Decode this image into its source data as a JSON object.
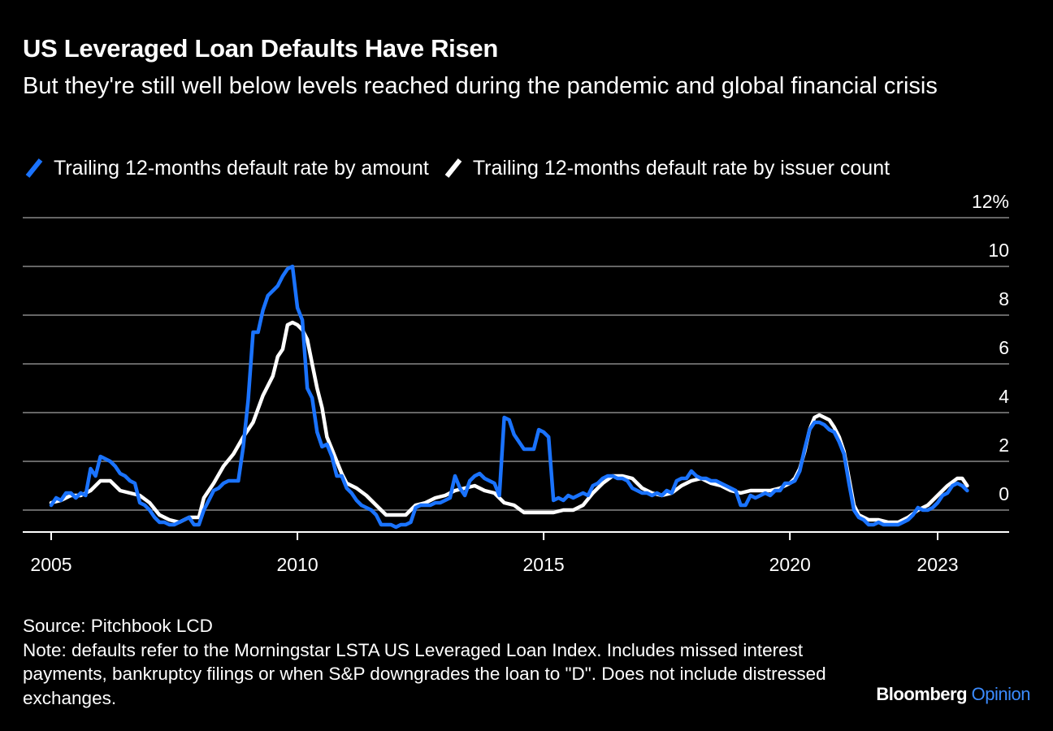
{
  "chart_data": {
    "type": "line",
    "title": "US Leveraged Loan Defaults Have Risen",
    "subtitle": "But they're still well below levels reached during the pandemic and global financial crisis",
    "xlabel": "",
    "ylabel": "",
    "xlim": [
      2005,
      2023.75
    ],
    "ylim": [
      -0.8,
      12
    ],
    "y_ticks": [
      0,
      2,
      4,
      6,
      8,
      10,
      12
    ],
    "y_tick_labels": [
      "0",
      "2",
      "4",
      "6",
      "8",
      "10",
      "12%"
    ],
    "x_ticks": [
      2005,
      2010,
      2015,
      2020,
      2023
    ],
    "x_tick_labels": [
      "2005",
      "2010",
      "2015",
      "2020",
      "2023"
    ],
    "grid": true,
    "legend_position": "top-left",
    "series": [
      {
        "name": "Trailing 12-months default rate by amount",
        "color": "#1a73ff",
        "points": [
          [
            2005.0,
            0.2
          ],
          [
            2005.1,
            0.5
          ],
          [
            2005.2,
            0.4
          ],
          [
            2005.3,
            0.7
          ],
          [
            2005.4,
            0.7
          ],
          [
            2005.5,
            0.5
          ],
          [
            2005.6,
            0.7
          ],
          [
            2005.7,
            0.6
          ],
          [
            2005.8,
            1.7
          ],
          [
            2005.9,
            1.4
          ],
          [
            2006.0,
            2.2
          ],
          [
            2006.1,
            2.1
          ],
          [
            2006.2,
            2.0
          ],
          [
            2006.3,
            1.8
          ],
          [
            2006.4,
            1.5
          ],
          [
            2006.5,
            1.4
          ],
          [
            2006.6,
            1.2
          ],
          [
            2006.7,
            1.1
          ],
          [
            2006.8,
            0.3
          ],
          [
            2006.9,
            0.2
          ],
          [
            2007.0,
            0.0
          ],
          [
            2007.1,
            -0.3
          ],
          [
            2007.2,
            -0.5
          ],
          [
            2007.3,
            -0.5
          ],
          [
            2007.4,
            -0.6
          ],
          [
            2007.5,
            -0.6
          ],
          [
            2007.6,
            -0.5
          ],
          [
            2007.7,
            -0.4
          ],
          [
            2007.8,
            -0.3
          ],
          [
            2007.9,
            -0.6
          ],
          [
            2008.0,
            -0.6
          ],
          [
            2008.1,
            0.0
          ],
          [
            2008.2,
            0.4
          ],
          [
            2008.3,
            0.8
          ],
          [
            2008.4,
            0.9
          ],
          [
            2008.5,
            1.1
          ],
          [
            2008.6,
            1.2
          ],
          [
            2008.7,
            1.2
          ],
          [
            2008.8,
            1.2
          ],
          [
            2008.9,
            2.6
          ],
          [
            2009.0,
            4.5
          ],
          [
            2009.1,
            7.3
          ],
          [
            2009.2,
            7.3
          ],
          [
            2009.3,
            8.2
          ],
          [
            2009.4,
            8.8
          ],
          [
            2009.5,
            9.0
          ],
          [
            2009.6,
            9.2
          ],
          [
            2009.7,
            9.6
          ],
          [
            2009.8,
            9.9
          ],
          [
            2009.9,
            10.0
          ],
          [
            2010.0,
            8.3
          ],
          [
            2010.1,
            7.8
          ],
          [
            2010.2,
            5.0
          ],
          [
            2010.3,
            4.6
          ],
          [
            2010.4,
            3.2
          ],
          [
            2010.5,
            2.6
          ],
          [
            2010.6,
            2.7
          ],
          [
            2010.7,
            2.2
          ],
          [
            2010.8,
            1.4
          ],
          [
            2010.9,
            1.4
          ],
          [
            2011.0,
            0.9
          ],
          [
            2011.1,
            0.7
          ],
          [
            2011.2,
            0.4
          ],
          [
            2011.3,
            0.2
          ],
          [
            2011.4,
            0.1
          ],
          [
            2011.5,
            0.0
          ],
          [
            2011.6,
            -0.2
          ],
          [
            2011.7,
            -0.6
          ],
          [
            2011.8,
            -0.6
          ],
          [
            2011.9,
            -0.6
          ],
          [
            2012.0,
            -0.7
          ],
          [
            2012.1,
            -0.6
          ],
          [
            2012.2,
            -0.6
          ],
          [
            2012.3,
            -0.5
          ],
          [
            2012.4,
            0.1
          ],
          [
            2012.5,
            0.2
          ],
          [
            2012.6,
            0.2
          ],
          [
            2012.7,
            0.2
          ],
          [
            2012.8,
            0.3
          ],
          [
            2012.9,
            0.3
          ],
          [
            2013.0,
            0.4
          ],
          [
            2013.1,
            0.5
          ],
          [
            2013.2,
            1.4
          ],
          [
            2013.3,
            0.9
          ],
          [
            2013.4,
            0.6
          ],
          [
            2013.5,
            1.2
          ],
          [
            2013.6,
            1.4
          ],
          [
            2013.7,
            1.5
          ],
          [
            2013.8,
            1.3
          ],
          [
            2013.9,
            1.2
          ],
          [
            2014.0,
            1.1
          ],
          [
            2014.1,
            0.6
          ],
          [
            2014.2,
            3.8
          ],
          [
            2014.3,
            3.7
          ],
          [
            2014.4,
            3.1
          ],
          [
            2014.5,
            2.8
          ],
          [
            2014.6,
            2.5
          ],
          [
            2014.7,
            2.5
          ],
          [
            2014.8,
            2.5
          ],
          [
            2014.9,
            3.3
          ],
          [
            2015.0,
            3.2
          ],
          [
            2015.1,
            3.0
          ],
          [
            2015.2,
            0.4
          ],
          [
            2015.3,
            0.5
          ],
          [
            2015.4,
            0.4
          ],
          [
            2015.5,
            0.6
          ],
          [
            2015.6,
            0.5
          ],
          [
            2015.7,
            0.6
          ],
          [
            2015.8,
            0.7
          ],
          [
            2015.9,
            0.6
          ],
          [
            2016.0,
            1.0
          ],
          [
            2016.1,
            1.1
          ],
          [
            2016.2,
            1.3
          ],
          [
            2016.3,
            1.4
          ],
          [
            2016.4,
            1.4
          ],
          [
            2016.5,
            1.3
          ],
          [
            2016.6,
            1.3
          ],
          [
            2016.7,
            1.2
          ],
          [
            2016.8,
            0.9
          ],
          [
            2016.9,
            0.8
          ],
          [
            2017.0,
            0.7
          ],
          [
            2017.1,
            0.7
          ],
          [
            2017.2,
            0.6
          ],
          [
            2017.3,
            0.7
          ],
          [
            2017.4,
            0.6
          ],
          [
            2017.5,
            0.8
          ],
          [
            2017.6,
            0.7
          ],
          [
            2017.7,
            1.2
          ],
          [
            2017.8,
            1.3
          ],
          [
            2017.9,
            1.3
          ],
          [
            2018.0,
            1.6
          ],
          [
            2018.1,
            1.4
          ],
          [
            2018.2,
            1.3
          ],
          [
            2018.3,
            1.3
          ],
          [
            2018.4,
            1.2
          ],
          [
            2018.5,
            1.2
          ],
          [
            2018.6,
            1.1
          ],
          [
            2018.7,
            1.0
          ],
          [
            2018.8,
            0.9
          ],
          [
            2018.9,
            0.8
          ],
          [
            2019.0,
            0.2
          ],
          [
            2019.1,
            0.2
          ],
          [
            2019.2,
            0.6
          ],
          [
            2019.3,
            0.5
          ],
          [
            2019.4,
            0.6
          ],
          [
            2019.5,
            0.7
          ],
          [
            2019.6,
            0.6
          ],
          [
            2019.7,
            0.8
          ],
          [
            2019.8,
            0.8
          ],
          [
            2019.9,
            1.1
          ],
          [
            2020.0,
            1.1
          ],
          [
            2020.1,
            1.2
          ],
          [
            2020.2,
            1.6
          ],
          [
            2020.3,
            2.5
          ],
          [
            2020.4,
            3.3
          ],
          [
            2020.5,
            3.6
          ],
          [
            2020.6,
            3.6
          ],
          [
            2020.7,
            3.5
          ],
          [
            2020.8,
            3.3
          ],
          [
            2020.9,
            3.2
          ],
          [
            2021.0,
            2.8
          ],
          [
            2021.1,
            2.3
          ],
          [
            2021.2,
            1.1
          ],
          [
            2021.3,
            0.0
          ],
          [
            2021.4,
            -0.3
          ],
          [
            2021.5,
            -0.4
          ],
          [
            2021.6,
            -0.6
          ],
          [
            2021.7,
            -0.6
          ],
          [
            2021.8,
            -0.5
          ],
          [
            2021.9,
            -0.6
          ],
          [
            2022.0,
            -0.6
          ],
          [
            2022.1,
            -0.6
          ],
          [
            2022.2,
            -0.6
          ],
          [
            2022.3,
            -0.5
          ],
          [
            2022.4,
            -0.4
          ],
          [
            2022.5,
            -0.2
          ],
          [
            2022.6,
            0.1
          ],
          [
            2022.7,
            0.0
          ],
          [
            2022.8,
            0.0
          ],
          [
            2022.9,
            0.1
          ],
          [
            2023.0,
            0.3
          ],
          [
            2023.1,
            0.6
          ],
          [
            2023.2,
            0.7
          ],
          [
            2023.3,
            1.0
          ],
          [
            2023.4,
            1.1
          ],
          [
            2023.5,
            1.0
          ],
          [
            2023.6,
            0.8
          ]
        ]
      },
      {
        "name": "Trailing 12-months default rate by issuer count",
        "color": "#ffffff",
        "points": [
          [
            2005.0,
            0.3
          ],
          [
            2005.2,
            0.4
          ],
          [
            2005.4,
            0.6
          ],
          [
            2005.6,
            0.6
          ],
          [
            2005.8,
            0.8
          ],
          [
            2006.0,
            1.2
          ],
          [
            2006.1,
            1.2
          ],
          [
            2006.2,
            1.2
          ],
          [
            2006.3,
            1.0
          ],
          [
            2006.4,
            0.8
          ],
          [
            2006.6,
            0.7
          ],
          [
            2006.8,
            0.6
          ],
          [
            2007.0,
            0.3
          ],
          [
            2007.2,
            -0.2
          ],
          [
            2007.4,
            -0.4
          ],
          [
            2007.6,
            -0.5
          ],
          [
            2007.8,
            -0.3
          ],
          [
            2008.0,
            -0.3
          ],
          [
            2008.1,
            0.5
          ],
          [
            2008.3,
            1.1
          ],
          [
            2008.5,
            1.8
          ],
          [
            2008.7,
            2.3
          ],
          [
            2008.9,
            3.0
          ],
          [
            2009.1,
            3.6
          ],
          [
            2009.3,
            4.7
          ],
          [
            2009.5,
            5.5
          ],
          [
            2009.6,
            6.3
          ],
          [
            2009.7,
            6.6
          ],
          [
            2009.8,
            7.6
          ],
          [
            2009.9,
            7.7
          ],
          [
            2010.0,
            7.6
          ],
          [
            2010.1,
            7.4
          ],
          [
            2010.2,
            7.0
          ],
          [
            2010.3,
            6.0
          ],
          [
            2010.4,
            5.0
          ],
          [
            2010.5,
            4.2
          ],
          [
            2010.6,
            3.0
          ],
          [
            2010.7,
            2.5
          ],
          [
            2010.8,
            2.0
          ],
          [
            2010.9,
            1.5
          ],
          [
            2011.0,
            1.1
          ],
          [
            2011.2,
            0.9
          ],
          [
            2011.4,
            0.6
          ],
          [
            2011.6,
            0.2
          ],
          [
            2011.8,
            -0.2
          ],
          [
            2012.0,
            -0.2
          ],
          [
            2012.2,
            -0.2
          ],
          [
            2012.4,
            0.2
          ],
          [
            2012.6,
            0.3
          ],
          [
            2012.8,
            0.5
          ],
          [
            2013.0,
            0.6
          ],
          [
            2013.2,
            0.8
          ],
          [
            2013.4,
            0.9
          ],
          [
            2013.6,
            1.0
          ],
          [
            2013.8,
            0.8
          ],
          [
            2014.0,
            0.7
          ],
          [
            2014.2,
            0.3
          ],
          [
            2014.4,
            0.2
          ],
          [
            2014.6,
            -0.1
          ],
          [
            2014.8,
            -0.1
          ],
          [
            2015.0,
            -0.1
          ],
          [
            2015.2,
            -0.1
          ],
          [
            2015.4,
            0.0
          ],
          [
            2015.6,
            0.0
          ],
          [
            2015.8,
            0.2
          ],
          [
            2016.0,
            0.7
          ],
          [
            2016.2,
            1.1
          ],
          [
            2016.4,
            1.4
          ],
          [
            2016.6,
            1.4
          ],
          [
            2016.8,
            1.3
          ],
          [
            2017.0,
            0.9
          ],
          [
            2017.2,
            0.7
          ],
          [
            2017.4,
            0.6
          ],
          [
            2017.6,
            0.7
          ],
          [
            2017.8,
            1.0
          ],
          [
            2018.0,
            1.2
          ],
          [
            2018.2,
            1.3
          ],
          [
            2018.4,
            1.1
          ],
          [
            2018.6,
            1.0
          ],
          [
            2018.8,
            0.8
          ],
          [
            2019.0,
            0.7
          ],
          [
            2019.2,
            0.8
          ],
          [
            2019.4,
            0.8
          ],
          [
            2019.6,
            0.8
          ],
          [
            2019.8,
            0.9
          ],
          [
            2020.0,
            1.1
          ],
          [
            2020.1,
            1.3
          ],
          [
            2020.2,
            1.7
          ],
          [
            2020.3,
            2.4
          ],
          [
            2020.4,
            3.3
          ],
          [
            2020.5,
            3.8
          ],
          [
            2020.6,
            3.9
          ],
          [
            2020.7,
            3.8
          ],
          [
            2020.8,
            3.7
          ],
          [
            2020.9,
            3.4
          ],
          [
            2021.0,
            3.0
          ],
          [
            2021.1,
            2.4
          ],
          [
            2021.2,
            1.3
          ],
          [
            2021.3,
            0.2
          ],
          [
            2021.4,
            -0.2
          ],
          [
            2021.6,
            -0.4
          ],
          [
            2021.8,
            -0.4
          ],
          [
            2022.0,
            -0.5
          ],
          [
            2022.2,
            -0.5
          ],
          [
            2022.4,
            -0.3
          ],
          [
            2022.6,
            0.0
          ],
          [
            2022.8,
            0.2
          ],
          [
            2023.0,
            0.6
          ],
          [
            2023.2,
            1.0
          ],
          [
            2023.4,
            1.3
          ],
          [
            2023.5,
            1.3
          ],
          [
            2023.6,
            1.0
          ]
        ]
      }
    ]
  },
  "footer": {
    "source": "Source: Pitchbook LCD",
    "note": "Note: defaults refer to the Morningstar LSTA US Leveraged Loan Index. Includes missed interest payments, bankruptcy filings or when S&P downgrades the loan to \"D\". Does not include distressed exchanges."
  },
  "brand": {
    "name": "Bloomberg",
    "section": "Opinion"
  }
}
